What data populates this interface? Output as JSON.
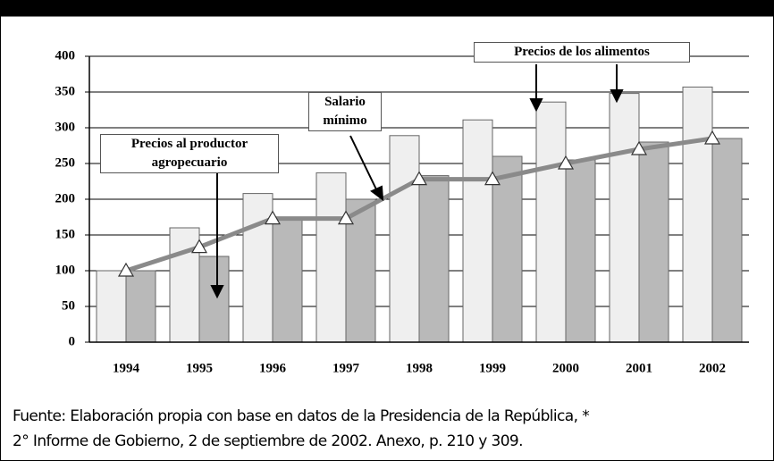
{
  "chart_data": {
    "type": "bar",
    "categories": [
      "1994",
      "1995",
      "1996",
      "1997",
      "1998",
      "1999",
      "2000",
      "2001",
      "2002"
    ],
    "series": [
      {
        "name": "Precios de los alimentos",
        "color": "#efefef",
        "values": [
          100,
          160,
          208,
          237,
          289,
          311,
          336,
          348,
          357
        ]
      },
      {
        "name": "Precios al productor agropecuario",
        "color": "#b9b9b9",
        "values": [
          100,
          120,
          175,
          200,
          233,
          260,
          255,
          280,
          285
        ]
      },
      {
        "name": "Salario mínimo",
        "type": "line",
        "color": "#8a8a8a",
        "values": [
          100,
          133,
          173,
          173,
          228,
          228,
          250,
          270,
          285
        ]
      }
    ],
    "ylim": [
      0,
      400
    ],
    "yticks": [
      0,
      50,
      100,
      150,
      200,
      250,
      300,
      350,
      400
    ],
    "grid": true,
    "notes": [
      "Fuente: Elaboración propia con base en datos de la Presidencia de la República, *",
      "2° Informe de Gobierno, 2 de septiembre de 2002. Anexo, p. 210 y 309."
    ]
  }
}
